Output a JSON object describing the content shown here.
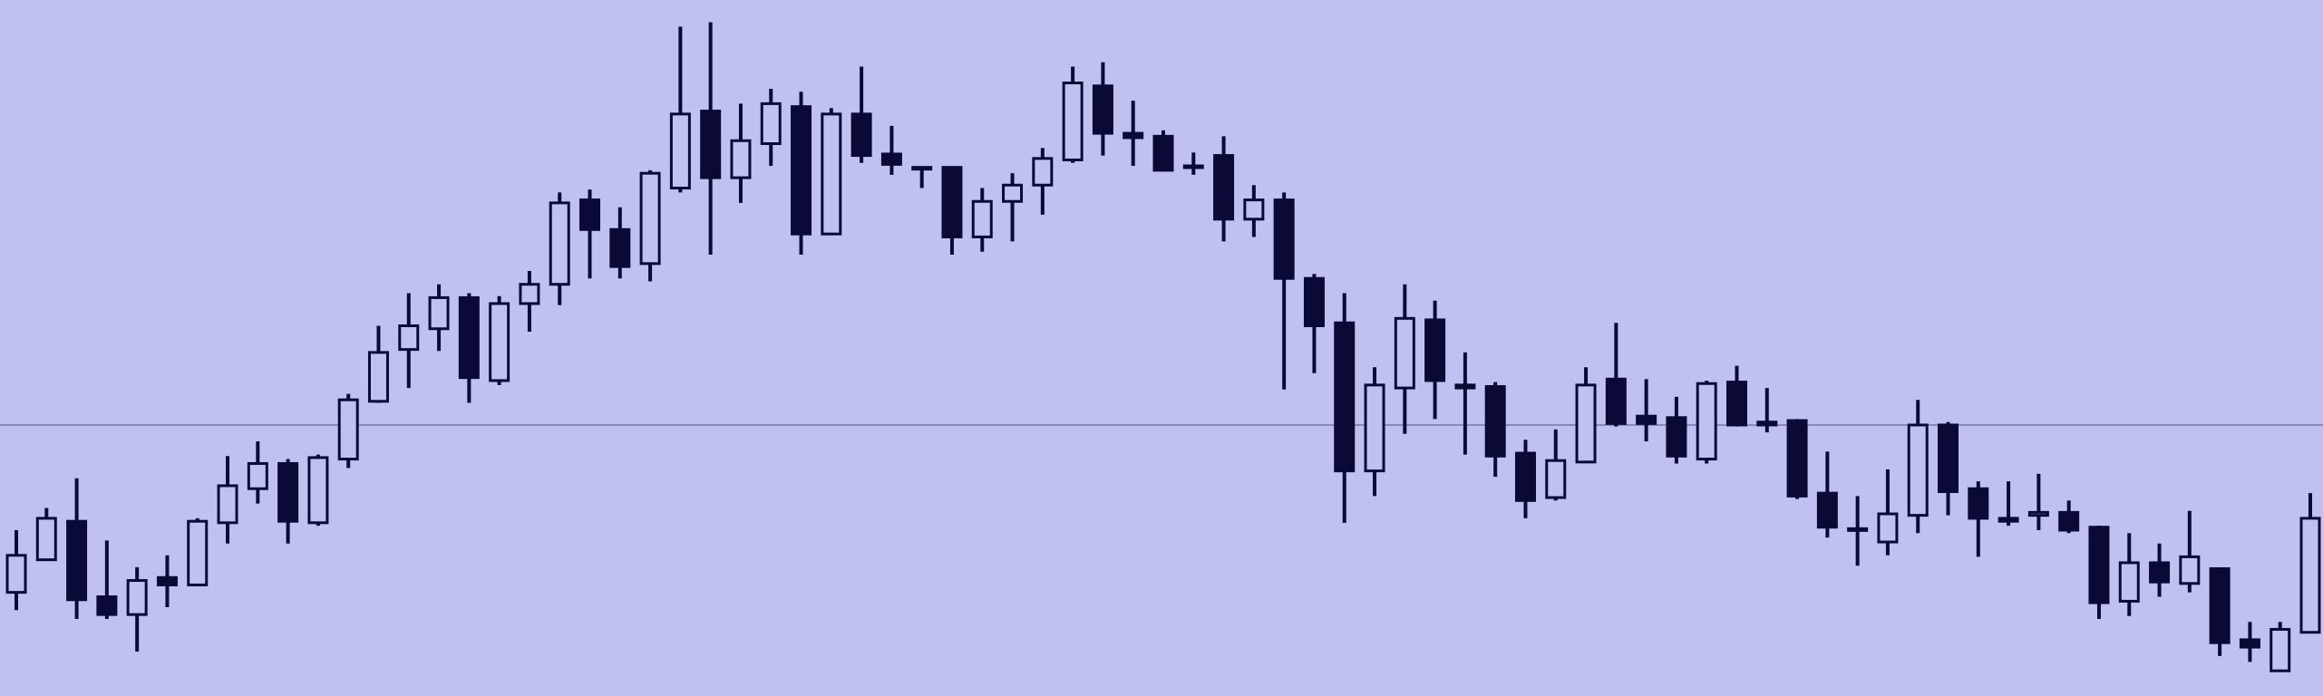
{
  "chart_data": {
    "type": "candlestick",
    "categories": [
      null,
      null,
      null,
      null,
      null,
      null,
      null,
      null,
      null,
      null,
      null,
      null,
      null,
      null,
      null,
      null,
      null,
      null,
      null,
      null,
      null,
      null,
      null,
      null,
      null,
      null,
      null,
      null,
      null,
      null,
      null,
      null,
      null,
      null,
      null,
      null,
      null,
      null,
      null,
      null,
      null,
      null,
      null,
      null,
      null,
      null,
      null,
      null,
      null,
      null,
      null,
      null,
      null,
      null,
      null,
      null,
      null,
      null,
      null,
      null,
      null,
      null,
      null,
      null,
      null,
      null,
      null,
      null,
      null,
      null,
      null,
      null,
      null,
      null,
      null,
      null,
      null
    ],
    "open": [
      70,
      92,
      118,
      67,
      55,
      80,
      75,
      117,
      140,
      157,
      117,
      160,
      199,
      234,
      248,
      269,
      213,
      265,
      278,
      335,
      315,
      292,
      343,
      395,
      350,
      373,
      398,
      312,
      393,
      366,
      357,
      357,
      310,
      334,
      345,
      362,
      412,
      380,
      378,
      358,
      365,
      322,
      335,
      282,
      252,
      152,
      208,
      254,
      210,
      209,
      164,
      134,
      158,
      214,
      189,
      188,
      160,
      212,
      185,
      186,
      137,
      113,
      104,
      122,
      183,
      140,
      120,
      122,
      124,
      114,
      64,
      90,
      76,
      86,
      38,
      17,
      43
    ],
    "high": [
      112,
      127,
      147,
      105,
      87,
      95,
      120,
      162,
      172,
      160,
      163,
      204,
      250,
      272,
      278,
      272,
      270,
      287,
      340,
      342,
      330,
      355,
      452,
      455,
      400,
      410,
      408,
      397,
      425,
      385,
      357,
      357,
      343,
      353,
      370,
      425,
      428,
      402,
      382,
      367,
      378,
      345,
      340,
      285,
      272,
      222,
      278,
      267,
      232,
      212,
      173,
      180,
      222,
      252,
      214,
      202,
      213,
      223,
      208,
      187,
      165,
      135,
      153,
      200,
      185,
      145,
      145,
      150,
      132,
      115,
      110,
      103,
      125,
      86,
      50,
      50,
      137
    ],
    "low": [
      58,
      92,
      52,
      52,
      30,
      60,
      75,
      103,
      130,
      103,
      115,
      154,
      198,
      208,
      233,
      198,
      210,
      246,
      264,
      282,
      282,
      280,
      340,
      298,
      333,
      358,
      298,
      312,
      360,
      352,
      343,
      298,
      300,
      307,
      325,
      360,
      365,
      358,
      355,
      352,
      307,
      310,
      207,
      218,
      117,
      135,
      177,
      187,
      163,
      148,
      120,
      132,
      158,
      182,
      172,
      157,
      157,
      182,
      178,
      133,
      107,
      88,
      95,
      110,
      122,
      94,
      115,
      112,
      110,
      52,
      54,
      67,
      70,
      27,
      23,
      17,
      43
    ],
    "close": [
      95,
      120,
      65,
      55,
      78,
      75,
      118,
      142,
      157,
      118,
      161,
      200,
      232,
      250,
      269,
      215,
      265,
      278,
      333,
      315,
      290,
      353,
      393,
      350,
      375,
      400,
      312,
      393,
      365,
      359,
      356,
      310,
      334,
      345,
      363,
      414,
      380,
      377,
      355,
      357,
      322,
      335,
      282,
      250,
      152,
      210,
      255,
      213,
      208,
      162,
      132,
      159,
      210,
      184,
      184,
      162,
      211,
      183,
      183,
      135,
      114,
      112,
      123,
      183,
      138,
      120,
      118,
      124,
      112,
      63,
      90,
      77,
      94,
      36,
      33,
      45,
      120
    ],
    "ylim": [
      0,
      470
    ],
    "reference_line": 183,
    "reference_color": "#8a8ab4",
    "up_color": "#c1c1f1",
    "down_color": "#0b0a36",
    "wick_color": "#0b0a36"
  }
}
